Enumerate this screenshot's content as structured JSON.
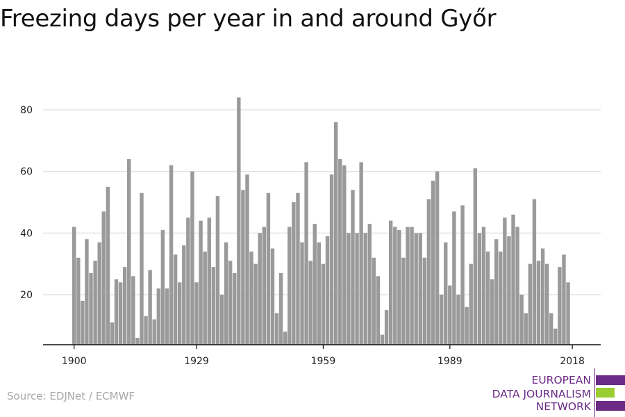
{
  "header": {
    "title": "Freezing days per year in and around Győr"
  },
  "footer": {
    "source": "Source: EDJNet / ECMWF"
  },
  "logo": {
    "lines": [
      "EUROPEAN",
      "DATA JOURNALISM",
      "NETWORK"
    ],
    "colors": [
      "#6b2a86",
      "#9acd32",
      "#6b2a86"
    ]
  },
  "colors": {
    "bar": "#9a9a9a",
    "grid": "#dddddd",
    "axis": "#111111",
    "tick_label": "#222222"
  },
  "chart_data": {
    "type": "bar",
    "title": "Freezing days per year in and around Győr",
    "xlabel": "",
    "ylabel": "",
    "x_start": 1900,
    "x_end": 2018,
    "x_ticks": [
      1900,
      1929,
      1959,
      1989,
      2018
    ],
    "y_ticks": [
      20,
      40,
      60,
      80
    ],
    "ylim": [
      4,
      88
    ],
    "grid": true,
    "legend": "none",
    "series": [
      {
        "values": [
          42,
          32,
          18,
          38,
          27,
          31,
          37,
          47,
          55,
          11,
          25,
          24,
          29,
          64,
          26,
          6,
          53,
          13,
          28,
          12,
          22,
          41,
          22,
          62,
          33,
          24,
          36,
          45,
          60,
          24,
          44,
          34,
          45,
          29,
          52,
          20,
          37,
          31,
          27,
          84,
          54,
          59,
          34,
          30,
          40,
          42,
          53,
          35,
          14,
          27,
          8,
          42,
          50,
          53,
          37,
          63,
          31,
          43,
          37,
          30,
          39,
          59,
          76,
          64,
          62,
          40,
          54,
          40,
          63,
          40,
          43,
          32,
          26,
          7,
          15,
          44,
          42,
          41,
          32,
          42,
          42,
          40,
          40,
          32,
          51,
          57,
          60,
          20,
          37,
          23,
          47,
          20,
          49,
          16,
          30,
          61,
          40,
          42,
          34,
          25,
          38,
          34,
          45,
          39,
          46,
          42,
          20,
          14,
          30,
          51,
          31,
          35,
          30,
          14,
          9,
          29,
          33,
          24
        ]
      }
    ]
  }
}
